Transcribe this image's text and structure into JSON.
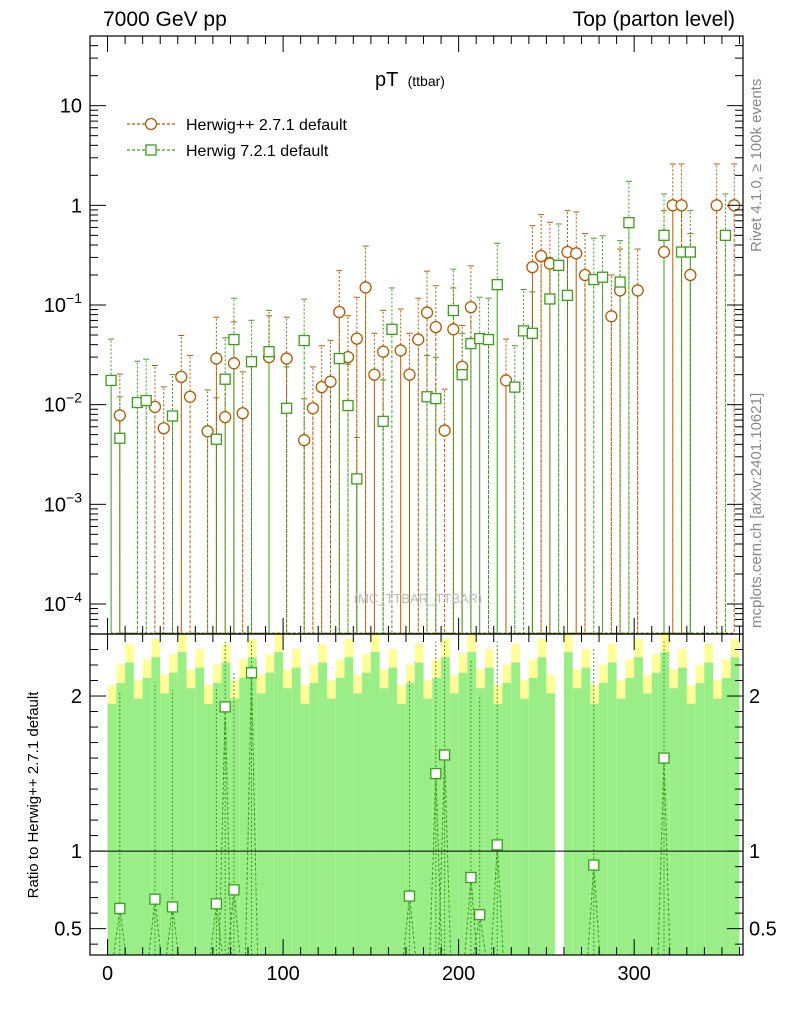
{
  "header": {
    "left": "7000 GeV pp",
    "right": "Top (parton level)"
  },
  "side_labels": {
    "rivet": "Rivet 4.1.0, ≥ 100k events",
    "mcplots": "mcplots.cern.ch [arXiv:2401.10621]"
  },
  "colors": {
    "herwigpp": "#b35900",
    "herwig7": "#3a9e1a",
    "band_green": "#99ee88",
    "band_yellow": "#ffff99"
  },
  "chart_data": [
    {
      "type": "scatter",
      "panel": "main",
      "title": "pT",
      "title_sub": "(ttbar)",
      "watermark": "(MC_TTBAR_TTBAR)",
      "yscale": "log",
      "xlim": [
        -10,
        362
      ],
      "ylim": [
        5e-05,
        50
      ],
      "yticks": [
        {
          "v": 0.0001,
          "m": "10",
          "e": "−4"
        },
        {
          "v": 0.001,
          "m": "10",
          "e": "−3"
        },
        {
          "v": 0.01,
          "m": "10",
          "e": "−2"
        },
        {
          "v": 0.1,
          "m": "10",
          "e": "−1"
        },
        {
          "v": 1,
          "m": "1",
          "e": ""
        },
        {
          "v": 10,
          "m": "10",
          "e": ""
        }
      ],
      "series": [
        {
          "name": "Herwig++ 2.7.1 default",
          "marker": "circle",
          "x": [
            7,
            27,
            32,
            42,
            47,
            57,
            62,
            67,
            72,
            77,
            92,
            102,
            112,
            117,
            122,
            127,
            132,
            137,
            142,
            147,
            152,
            157,
            167,
            172,
            177,
            182,
            187,
            192,
            197,
            202,
            207,
            227,
            242,
            247,
            252,
            262,
            267,
            272,
            287,
            292,
            302,
            317,
            322,
            327,
            332,
            347,
            357
          ],
          "y": [
            0.0078,
            0.0095,
            0.0058,
            0.019,
            0.012,
            0.0054,
            0.029,
            0.0075,
            0.026,
            0.0082,
            0.03,
            0.029,
            0.0044,
            0.0092,
            0.015,
            0.017,
            0.085,
            0.03,
            0.046,
            0.15,
            0.02,
            0.034,
            0.035,
            0.02,
            0.045,
            0.084,
            0.06,
            0.0055,
            0.057,
            0.024,
            0.095,
            0.0175,
            0.24,
            0.31,
            0.26,
            0.34,
            0.33,
            0.2,
            0.077,
            0.14,
            0.14,
            0.34,
            1.0,
            1.0,
            0.2,
            1.0,
            1.0
          ]
        },
        {
          "name": "Herwig 7.2.1 default",
          "marker": "square",
          "x": [
            2,
            7,
            17,
            22,
            37,
            62,
            67,
            72,
            82,
            92,
            102,
            112,
            132,
            137,
            142,
            157,
            162,
            182,
            187,
            197,
            202,
            207,
            212,
            217,
            222,
            232,
            237,
            242,
            252,
            257,
            262,
            277,
            282,
            292,
            297,
            317,
            327,
            332,
            352
          ],
          "y": [
            0.0175,
            0.0046,
            0.0105,
            0.011,
            0.0077,
            0.0045,
            0.018,
            0.045,
            0.027,
            0.034,
            0.0092,
            0.044,
            0.029,
            0.0098,
            0.0018,
            0.0068,
            0.057,
            0.012,
            0.0115,
            0.088,
            0.02,
            0.041,
            0.046,
            0.045,
            0.16,
            0.015,
            0.055,
            0.052,
            0.115,
            0.25,
            0.125,
            0.18,
            0.19,
            0.17,
            0.67,
            0.5,
            0.34,
            0.34,
            0.5
          ]
        }
      ]
    },
    {
      "type": "scatter",
      "panel": "ratio",
      "ylabel": "Ratio to Herwig++ 2.7.1 default",
      "xlim": [
        -10,
        362
      ],
      "ylim": [
        0.33,
        2.4
      ],
      "yticks": [
        0.5,
        1,
        2
      ],
      "xticks": [
        0,
        100,
        200,
        300
      ],
      "reference": 1,
      "series": [
        {
          "name": "Herwig 7.2.1 default",
          "x": [
            7,
            27,
            37,
            62,
            67,
            72,
            82,
            187,
            192,
            172,
            207,
            212,
            222,
            277,
            317
          ],
          "y": [
            0.63,
            0.69,
            0.64,
            0.66,
            1.93,
            0.75,
            2.15,
            1.5,
            1.62,
            0.71,
            0.83,
            0.59,
            1.04,
            0.91,
            1.6
          ]
        }
      ]
    }
  ]
}
